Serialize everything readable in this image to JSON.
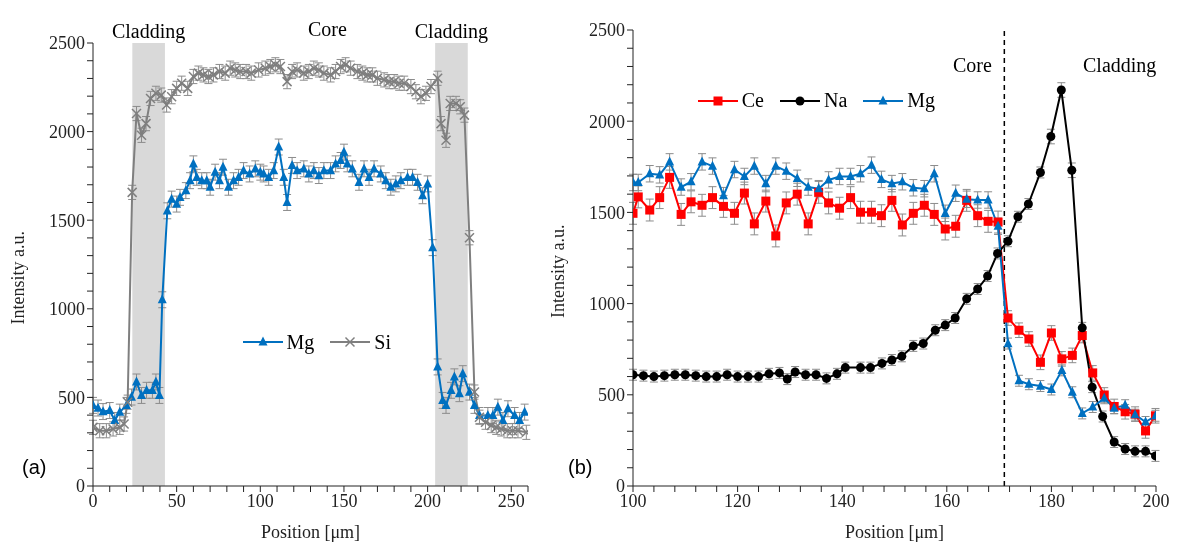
{
  "chart_data": [
    {
      "type": "line",
      "xlabel": "Position [μm]",
      "ylabel": "Intensity a.u.",
      "legend": "center",
      "xlim": [
        0,
        260
      ],
      "xticks": [
        0,
        {
          "value": 10,
          "label": null
        },
        {
          "value": 20,
          "label": null
        },
        {
          "value": 30,
          "label": null
        },
        {
          "value": 40,
          "label": null
        },
        50,
        {
          "value": 60,
          "label": null
        },
        {
          "value": 70,
          "label": null
        },
        {
          "value": 80,
          "label": null
        },
        {
          "value": 90,
          "label": null
        },
        100,
        {
          "value": 110,
          "label": null
        },
        {
          "value": 120,
          "label": null
        },
        {
          "value": 130,
          "label": null
        },
        {
          "value": 140,
          "label": null
        },
        150,
        {
          "value": 160,
          "label": null
        },
        {
          "value": 170,
          "label": null
        },
        {
          "value": 180,
          "label": null
        },
        {
          "value": 190,
          "label": null
        },
        200,
        {
          "value": 210,
          "label": null
        },
        {
          "value": 220,
          "label": null
        },
        {
          "value": 230,
          "label": null
        },
        {
          "value": 240,
          "label": null
        },
        250,
        {
          "value": 260,
          "label": null
        }
      ],
      "ylim": [
        0,
        2500
      ],
      "yticks": [
        0,
        {
          "value": 100,
          "label": null
        },
        {
          "value": 200,
          "label": null
        },
        {
          "value": 300,
          "label": null
        },
        {
          "value": 400,
          "label": null
        },
        500,
        {
          "value": 600,
          "label": null
        },
        {
          "value": 700,
          "label": null
        },
        {
          "value": 800,
          "label": null
        },
        {
          "value": 900,
          "label": null
        },
        1000,
        {
          "value": 1100,
          "label": null
        },
        {
          "value": 1200,
          "label": null
        },
        {
          "value": 1300,
          "label": null
        },
        {
          "value": 1400,
          "label": null
        },
        1500,
        {
          "value": 1600,
          "label": null
        },
        {
          "value": 1700,
          "label": null
        },
        {
          "value": 1800,
          "label": null
        },
        {
          "value": 1900,
          "label": null
        },
        2000,
        {
          "value": 2100,
          "label": null
        },
        {
          "value": 2200,
          "label": null
        },
        {
          "value": 2300,
          "label": null
        },
        {
          "value": 2400,
          "label": null
        },
        2500
      ],
      "bands": [
        {
          "axis": "x",
          "from": 23.5,
          "to": 43,
          "label": "Cladding",
          "color": "#d9d9d9"
        },
        {
          "axis": "x",
          "from": 204.5,
          "to": 224,
          "label": "Cladding",
          "color": "#d9d9d9"
        }
      ],
      "annotations": [
        "Core",
        "(a)"
      ],
      "series": [
        {
          "name": "Mg",
          "color": "#0070c0",
          "marker": "triangle",
          "x": [
            0,
            3,
            6,
            10,
            13,
            16,
            20,
            23,
            26,
            29,
            32,
            35.5,
            37.6,
            39.7,
            41.4,
            44.4,
            47,
            50,
            52,
            55.5,
            58,
            60,
            62,
            65,
            68,
            70,
            73,
            75.6,
            77.7,
            81,
            84,
            87,
            90,
            93.6,
            97,
            100,
            102,
            105,
            108,
            111,
            114,
            116,
            119,
            122,
            126,
            129,
            132,
            135,
            138,
            142,
            145,
            148,
            150,
            152,
            155,
            159,
            162,
            165,
            168,
            172,
            175,
            178,
            181,
            184,
            188,
            191,
            194,
            197,
            200,
            203,
            206,
            209,
            211,
            214,
            216,
            219,
            221,
            225,
            228,
            231,
            236,
            239,
            242,
            245,
            248,
            252,
            255,
            258
          ],
          "values": [
            455,
            440,
            420,
            426,
            370,
            417,
            455,
            502,
            587,
            511,
            540,
            540,
            587,
            511,
            1051,
            1553,
            1619,
            1591,
            1629,
            1667,
            1723,
            1818,
            1742,
            1723,
            1723,
            1686,
            1771,
            1723,
            1799,
            1686,
            1723,
            1742,
            1780,
            1761,
            1790,
            1771,
            1761,
            1742,
            1780,
            1913,
            1742,
            1600,
            1809,
            1780,
            1790,
            1761,
            1780,
            1752,
            1780,
            1780,
            1818,
            1837,
            1884,
            1818,
            1790,
            1714,
            1790,
            1742,
            1790,
            1761,
            1723,
            1686,
            1705,
            1723,
            1742,
            1742,
            1714,
            1638,
            1705,
            1345,
            672,
            483,
            455,
            540,
            616,
            521,
            634,
            530,
            455,
            398,
            398,
            398,
            445,
            370,
            436,
            398,
            370,
            417
          ],
          "errors": [
            45,
            45,
            45,
            45,
            45,
            45,
            45,
            45,
            45,
            45,
            45,
            45,
            45,
            45,
            45,
            45,
            45,
            45,
            45,
            45,
            45,
            45,
            45,
            45,
            45,
            45,
            45,
            45,
            45,
            45,
            45,
            45,
            45,
            45,
            45,
            45,
            45,
            45,
            45,
            45,
            45,
            45,
            45,
            45,
            45,
            45,
            45,
            45,
            45,
            45,
            45,
            45,
            45,
            45,
            45,
            45,
            45,
            45,
            45,
            45,
            45,
            45,
            45,
            45,
            45,
            45,
            45,
            45,
            45,
            45,
            45,
            45,
            45,
            45,
            45,
            45,
            45,
            45,
            45,
            45,
            45,
            45,
            45,
            45,
            45,
            45,
            45,
            45
          ]
        },
        {
          "name": "Si",
          "color": "#7f7f7f",
          "marker": "cross",
          "x": [
            0,
            4,
            8,
            12,
            16,
            18.6,
            20.7,
            23.4,
            26,
            29,
            31.7,
            34.4,
            37.6,
            40.8,
            44,
            47,
            50,
            53,
            56.6,
            60,
            63,
            66,
            69,
            72,
            75.6,
            79,
            82,
            85,
            88,
            91.5,
            94.6,
            99,
            103,
            106,
            109,
            112,
            116,
            119,
            122,
            126,
            129,
            132,
            135,
            138,
            142,
            145,
            148,
            151,
            154,
            158,
            161,
            164,
            167,
            170,
            174,
            177,
            180,
            183,
            186,
            190,
            193,
            196,
            199,
            202,
            206,
            208,
            211,
            213.5,
            217,
            219.5,
            222,
            225,
            228,
            231,
            234.6,
            238,
            241,
            244,
            247.6,
            250.7,
            254,
            259
          ],
          "values": [
            331,
            312,
            312,
            322,
            331,
            350,
            473,
            1657,
            2102,
            1979,
            2045,
            2187,
            2216,
            2206,
            2150,
            2197,
            2244,
            2273,
            2244,
            2311,
            2330,
            2320,
            2311,
            2320,
            2339,
            2330,
            2358,
            2348,
            2339,
            2339,
            2330,
            2348,
            2358,
            2367,
            2377,
            2367,
            2282,
            2339,
            2348,
            2330,
            2339,
            2358,
            2348,
            2330,
            2320,
            2339,
            2367,
            2377,
            2358,
            2339,
            2330,
            2320,
            2320,
            2301,
            2292,
            2282,
            2282,
            2273,
            2273,
            2254,
            2225,
            2197,
            2216,
            2254,
            2301,
            2045,
            1951,
            2159,
            2159,
            2140,
            2093,
            1401,
            530,
            388,
            360,
            341,
            331,
            322,
            312,
            312,
            312,
            303
          ],
          "errors": [
            40,
            40,
            40,
            40,
            40,
            40,
            40,
            40,
            40,
            40,
            40,
            40,
            40,
            40,
            40,
            40,
            40,
            40,
            40,
            40,
            40,
            40,
            40,
            40,
            40,
            40,
            40,
            40,
            40,
            40,
            40,
            40,
            40,
            40,
            40,
            40,
            40,
            40,
            40,
            40,
            40,
            40,
            40,
            40,
            40,
            40,
            40,
            40,
            40,
            40,
            40,
            40,
            40,
            40,
            40,
            40,
            40,
            40,
            40,
            40,
            40,
            40,
            40,
            40,
            40,
            40,
            40,
            40,
            40,
            40,
            40,
            40,
            40,
            40,
            40,
            40,
            40,
            40,
            40,
            40,
            40,
            40
          ]
        }
      ]
    },
    {
      "type": "line",
      "xlabel": "Position [μm]",
      "ylabel": "Intensity a.u.",
      "legend": "top left",
      "xlim": [
        100,
        200
      ],
      "xticks": [
        100,
        {
          "value": 104,
          "label": null
        },
        {
          "value": 108,
          "label": null
        },
        {
          "value": 112,
          "label": null
        },
        {
          "value": 116,
          "label": null
        },
        120,
        {
          "value": 124,
          "label": null
        },
        {
          "value": 128,
          "label": null
        },
        {
          "value": 132,
          "label": null
        },
        {
          "value": 136,
          "label": null
        },
        140,
        {
          "value": 144,
          "label": null
        },
        {
          "value": 148,
          "label": null
        },
        {
          "value": 152,
          "label": null
        },
        {
          "value": 156,
          "label": null
        },
        160,
        {
          "value": 164,
          "label": null
        },
        {
          "value": 168,
          "label": null
        },
        {
          "value": 172,
          "label": null
        },
        {
          "value": 176,
          "label": null
        },
        180,
        {
          "value": 184,
          "label": null
        },
        {
          "value": 188,
          "label": null
        },
        {
          "value": 192,
          "label": null
        },
        {
          "value": 196,
          "label": null
        },
        200
      ],
      "ylim": [
        0,
        2500
      ],
      "yticks": [
        0,
        {
          "value": 100,
          "label": null
        },
        {
          "value": 200,
          "label": null
        },
        {
          "value": 300,
          "label": null
        },
        {
          "value": 400,
          "label": null
        },
        500,
        {
          "value": 600,
          "label": null
        },
        {
          "value": 700,
          "label": null
        },
        {
          "value": 800,
          "label": null
        },
        {
          "value": 900,
          "label": null
        },
        1000,
        {
          "value": 1100,
          "label": null
        },
        {
          "value": 1200,
          "label": null
        },
        {
          "value": 1300,
          "label": null
        },
        {
          "value": 1400,
          "label": null
        },
        1500,
        {
          "value": 1600,
          "label": null
        },
        {
          "value": 1700,
          "label": null
        },
        {
          "value": 1800,
          "label": null
        },
        {
          "value": 1900,
          "label": null
        },
        2000,
        {
          "value": 2100,
          "label": null
        },
        {
          "value": 2200,
          "label": null
        },
        {
          "value": 2300,
          "label": null
        },
        {
          "value": 2400,
          "label": null
        },
        2500
      ],
      "ref_lines": [
        {
          "axis": "x",
          "value": 171,
          "color": "#000000",
          "line_style": "dashed"
        }
      ],
      "annotations": [
        "Core",
        "Cladding",
        "(b)"
      ],
      "series": [
        {
          "name": "Ce",
          "color": "#ff0000",
          "marker": "square",
          "x": [
            100,
            101,
            103.2,
            105.1,
            107,
            109.2,
            111.1,
            113.2,
            115.2,
            117.3,
            119.4,
            121.3,
            123.2,
            125.4,
            127.3,
            129.3,
            131.4,
            133.5,
            135.5,
            137.4,
            139.5,
            141.6,
            143.5,
            145.6,
            147.5,
            149.5,
            151.5,
            153.6,
            155.7,
            157.6,
            159.7,
            161.7,
            163.8,
            165.9,
            167.9,
            169.8,
            171.7,
            173.8,
            175.7,
            177.9,
            180,
            182,
            184,
            185.9,
            187.9,
            190.1,
            192,
            194.1,
            196,
            198,
            199.9
          ],
          "values": [
            1495,
            1585,
            1513,
            1581,
            1692,
            1489,
            1558,
            1539,
            1581,
            1533,
            1495,
            1606,
            1437,
            1562,
            1371,
            1552,
            1600,
            1437,
            1610,
            1552,
            1523,
            1581,
            1501,
            1501,
            1482,
            1566,
            1431,
            1495,
            1539,
            1489,
            1409,
            1424,
            1566,
            1482,
            1451,
            1447,
            921,
            854,
            806,
            678,
            839,
            697,
            716,
            825,
            620,
            499,
            436,
            407,
            394,
            302,
            385
          ],
          "errors": [
            60,
            60,
            60,
            60,
            60,
            60,
            60,
            60,
            60,
            60,
            60,
            60,
            60,
            60,
            60,
            60,
            60,
            60,
            60,
            60,
            60,
            60,
            60,
            60,
            60,
            60,
            60,
            60,
            60,
            60,
            60,
            60,
            60,
            60,
            60,
            60,
            40,
            40,
            40,
            40,
            40,
            40,
            40,
            40,
            40,
            40,
            40,
            40,
            40,
            40,
            40
          ]
        },
        {
          "name": "Na",
          "color": "#000000",
          "marker": "circle",
          "x": [
            100,
            102,
            104,
            106,
            108,
            110,
            112,
            114,
            116,
            118,
            120,
            122,
            124,
            126,
            128,
            129.5,
            131,
            133,
            135,
            137,
            139,
            140.6,
            143.5,
            145.4,
            147.6,
            149.5,
            151.4,
            153.6,
            155.5,
            157.8,
            159.7,
            161.6,
            163.8,
            165.9,
            167.8,
            169.7,
            171.7,
            173.6,
            175.6,
            177.9,
            179.9,
            181.9,
            183.9,
            185.9,
            187.8,
            189.8,
            192,
            194.1,
            196,
            198,
            199.9
          ],
          "values": [
            610,
            605,
            600,
            605,
            610,
            610,
            605,
            600,
            600,
            610,
            600,
            600,
            600,
            615,
            620,
            586,
            625,
            610,
            610,
            590,
            615,
            649,
            649,
            649,
            672,
            691,
            711,
            768,
            781,
            854,
            882,
            921,
            1026,
            1080,
            1151,
            1275,
            1342,
            1476,
            1546,
            1719,
            1916,
            2171,
            1731,
            867,
            542,
            381,
            241,
            203,
            190,
            190,
            165
          ],
          "errors": [
            30,
            30,
            30,
            30,
            30,
            30,
            30,
            30,
            30,
            30,
            30,
            30,
            30,
            30,
            30,
            30,
            30,
            30,
            30,
            30,
            30,
            30,
            30,
            30,
            30,
            30,
            30,
            30,
            30,
            30,
            30,
            30,
            30,
            30,
            30,
            30,
            30,
            30,
            30,
            30,
            40,
            40,
            40,
            30,
            30,
            30,
            30,
            30,
            30,
            30,
            30
          ]
        },
        {
          "name": "Mg",
          "color": "#0070c0",
          "marker": "triangle",
          "x": [
            100,
            101,
            103.2,
            105.1,
            107,
            109.2,
            111.1,
            113.2,
            115.2,
            117.3,
            119.4,
            121.3,
            123.2,
            125.4,
            127.3,
            129.3,
            131.4,
            133.5,
            135.5,
            137.4,
            139.5,
            141.6,
            143.5,
            145.6,
            147.5,
            149.5,
            151.5,
            153.6,
            155.7,
            157.6,
            159.7,
            161.7,
            163.8,
            165.9,
            167.9,
            169.8,
            171.7,
            173.8,
            175.7,
            177.9,
            180,
            182,
            184,
            185.9,
            187.9,
            190.1,
            192,
            194.1,
            196,
            198,
            199.9
          ],
          "values": [
            1664,
            1664,
            1712,
            1706,
            1777,
            1639,
            1668,
            1777,
            1754,
            1592,
            1735,
            1697,
            1754,
            1658,
            1754,
            1726,
            1687,
            1639,
            1630,
            1678,
            1697,
            1697,
            1712,
            1759,
            1681,
            1658,
            1668,
            1635,
            1630,
            1712,
            1495,
            1605,
            1572,
            1568,
            1568,
            1424,
            781,
            577,
            558,
            548,
            529,
            634,
            514,
            398,
            433,
            481,
            427,
            443,
            391,
            351,
            385
          ],
          "errors": [
            45,
            45,
            45,
            45,
            45,
            45,
            45,
            45,
            45,
            45,
            45,
            45,
            45,
            45,
            45,
            45,
            45,
            45,
            45,
            45,
            45,
            45,
            45,
            45,
            45,
            45,
            45,
            45,
            45,
            45,
            45,
            45,
            45,
            45,
            45,
            45,
            30,
            30,
            30,
            30,
            30,
            30,
            30,
            30,
            30,
            30,
            30,
            30,
            30,
            30,
            30
          ]
        }
      ]
    }
  ]
}
